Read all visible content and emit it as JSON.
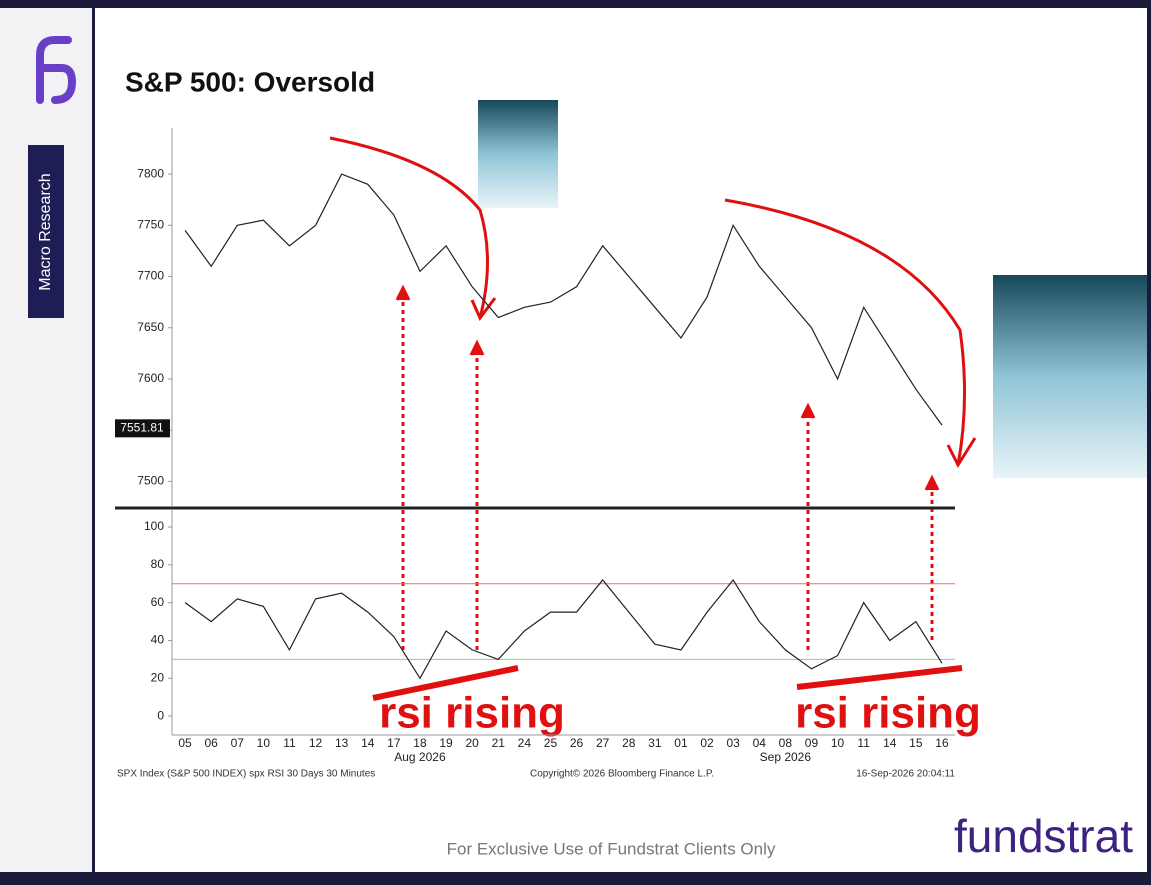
{
  "slide": {
    "title": "S&P 500: Oversold",
    "section": "Macro Research",
    "footer": "For Exclusive Use of Fundstrat Clients Only",
    "logo": "fundstrat",
    "annotations": [
      "rsi rising",
      "rsi rising"
    ],
    "source_left": "SPX Index (S&P 500 INDEX) spx RSI 30 Days 30 Minutes",
    "source_center": "Copyright© 2026 Bloomberg Finance L.P.",
    "source_right": "16-Sep-2026 20:04:11"
  },
  "chart_data": [
    {
      "type": "line",
      "color": "#222222",
      "categories": [
        "05",
        "06",
        "07",
        "10",
        "11",
        "12",
        "13",
        "14",
        "17",
        "18",
        "19",
        "20",
        "21",
        "24",
        "25",
        "26",
        "27",
        "28",
        "31",
        "01",
        "02",
        "03",
        "04",
        "08",
        "09",
        "10",
        "11",
        "14",
        "15",
        "16"
      ],
      "values": [
        7745,
        7710,
        7750,
        7755,
        7730,
        7750,
        7800,
        7790,
        7760,
        7705,
        7730,
        7690,
        7660,
        7670,
        7675,
        7690,
        7730,
        7700,
        7670,
        7640,
        7680,
        7750,
        7710,
        7680,
        7650,
        7600,
        7670,
        7630,
        7590,
        7555
      ],
      "ylim": [
        7475,
        7845
      ],
      "yticks": [
        7500,
        7550,
        7600,
        7650,
        7700,
        7750,
        7800
      ],
      "tick_labels_shown": [
        7500,
        7600,
        7650,
        7700,
        7750,
        7800
      ],
      "last_price": 7551.81
    },
    {
      "type": "line",
      "color": "#222222",
      "categories": [
        "05",
        "06",
        "07",
        "10",
        "11",
        "12",
        "13",
        "14",
        "17",
        "18",
        "19",
        "20",
        "21",
        "24",
        "25",
        "26",
        "27",
        "28",
        "31",
        "01",
        "02",
        "03",
        "04",
        "08",
        "09",
        "10",
        "11",
        "14",
        "15",
        "16"
      ],
      "values": [
        60,
        50,
        62,
        58,
        35,
        62,
        65,
        55,
        42,
        20,
        45,
        35,
        30,
        45,
        55,
        55,
        72,
        55,
        38,
        35,
        55,
        72,
        50,
        35,
        25,
        32,
        60,
        40,
        50,
        28
      ],
      "ylim": [
        -10,
        109
      ],
      "yticks": [
        0,
        20,
        40,
        60,
        80,
        100
      ],
      "ref_lines": [
        {
          "value": 70,
          "color": "#e07070"
        },
        {
          "value": 30,
          "color": "#7fd67f"
        }
      ],
      "x_periods": [
        "Aug 2026",
        "Sep 2026"
      ]
    }
  ]
}
